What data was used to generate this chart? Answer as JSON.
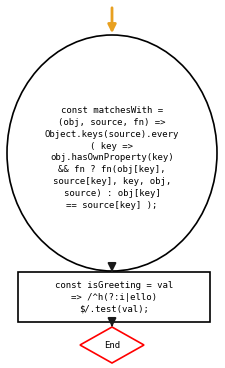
{
  "bg_color": "#ffffff",
  "arrow_color": "#e8a020",
  "flow_arrow_color": "#1a1a1a",
  "circle_text": "const matchesWith =\n(obj, source, fn) =>\nObject.keys(source).every\n( key =>\nobj.hasOwnProperty(key)\n&& fn ? fn(obj[key],\nsource[key], key, obj,\nsource) : obj[key]\n== source[key] );",
  "rect_text": "const isGreeting = val\n=> /^h(?:i|ello)\n$/.test(val);",
  "end_text": "End",
  "font_size": 6.5,
  "font_family": "monospace"
}
